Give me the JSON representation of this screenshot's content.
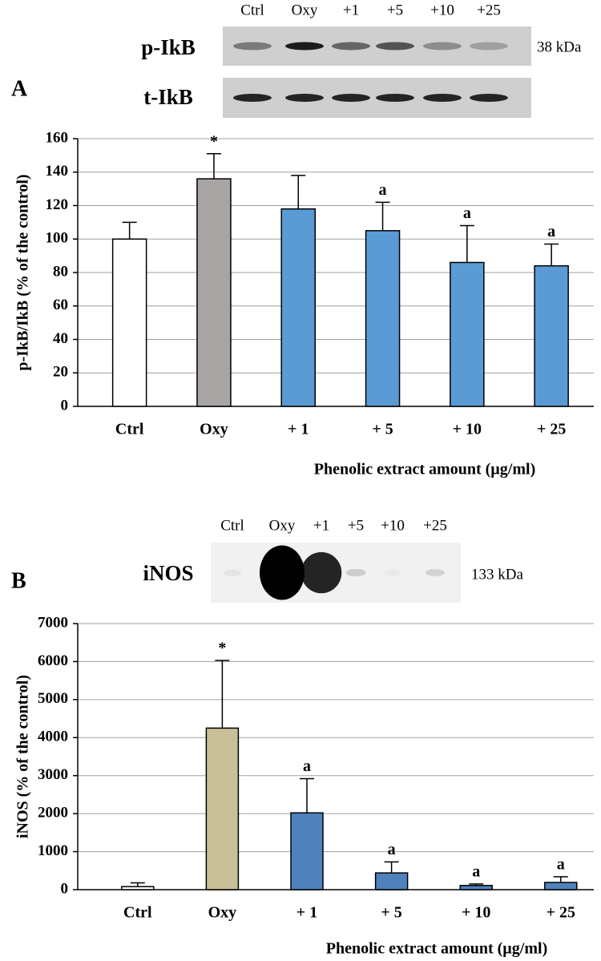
{
  "chart_data": [
    {
      "type": "bar",
      "panel_label": "A",
      "blot": {
        "lanes": [
          "Ctrl",
          "Oxy",
          "+1",
          "+5",
          "+10",
          "+25"
        ],
        "rows": [
          "p-IkB",
          "t-IkB"
        ],
        "size": "38 kDa"
      },
      "y_label": "p-IkB/IkB (% of the control)",
      "x_label": "Phenolic extract amount (µg/ml)",
      "categories": [
        "Ctrl",
        "Oxy",
        "+ 1",
        "+ 5",
        "+ 10",
        "+ 25"
      ],
      "values": [
        100,
        136,
        118,
        105,
        86,
        84
      ],
      "errors": [
        10,
        15,
        20,
        17,
        22,
        13
      ],
      "colors": [
        "#ffffff",
        "#a8a4a4",
        "#5b9bd5",
        "#5b9bd5",
        "#5b9bd5",
        "#5b9bd5"
      ],
      "bar_labels": [
        null,
        "*",
        null,
        "a",
        "a",
        "a"
      ],
      "ylim": [
        0,
        160
      ],
      "yticks": [
        0,
        20,
        40,
        60,
        80,
        100,
        120,
        140,
        160
      ],
      "grid": true
    },
    {
      "type": "bar",
      "panel_label": "B",
      "blot": {
        "lanes": [
          "Ctrl",
          "Oxy",
          "+1",
          "+5",
          "+10",
          "+25"
        ],
        "rows": [
          "iNOS"
        ],
        "size": "133 kDa"
      },
      "y_label": "iNOS (% of the control)",
      "x_label": "Phenolic extract amount (µg/ml)",
      "categories": [
        "Ctrl",
        "Oxy",
        "+ 1",
        "+ 5",
        "+ 10",
        "+ 25"
      ],
      "values": [
        80,
        4250,
        2020,
        440,
        110,
        190
      ],
      "errors": [
        100,
        1780,
        900,
        290,
        40,
        150
      ],
      "colors": [
        "#ffffff",
        "#c9bf98",
        "#4f81bd",
        "#4f81bd",
        "#4f81bd",
        "#4f81bd"
      ],
      "bar_labels": [
        null,
        "*",
        "a",
        "a",
        "a",
        "a"
      ],
      "ylim": [
        0,
        7000
      ],
      "yticks": [
        0,
        1000,
        2000,
        3000,
        4000,
        5000,
        6000,
        7000
      ],
      "grid": true
    }
  ]
}
